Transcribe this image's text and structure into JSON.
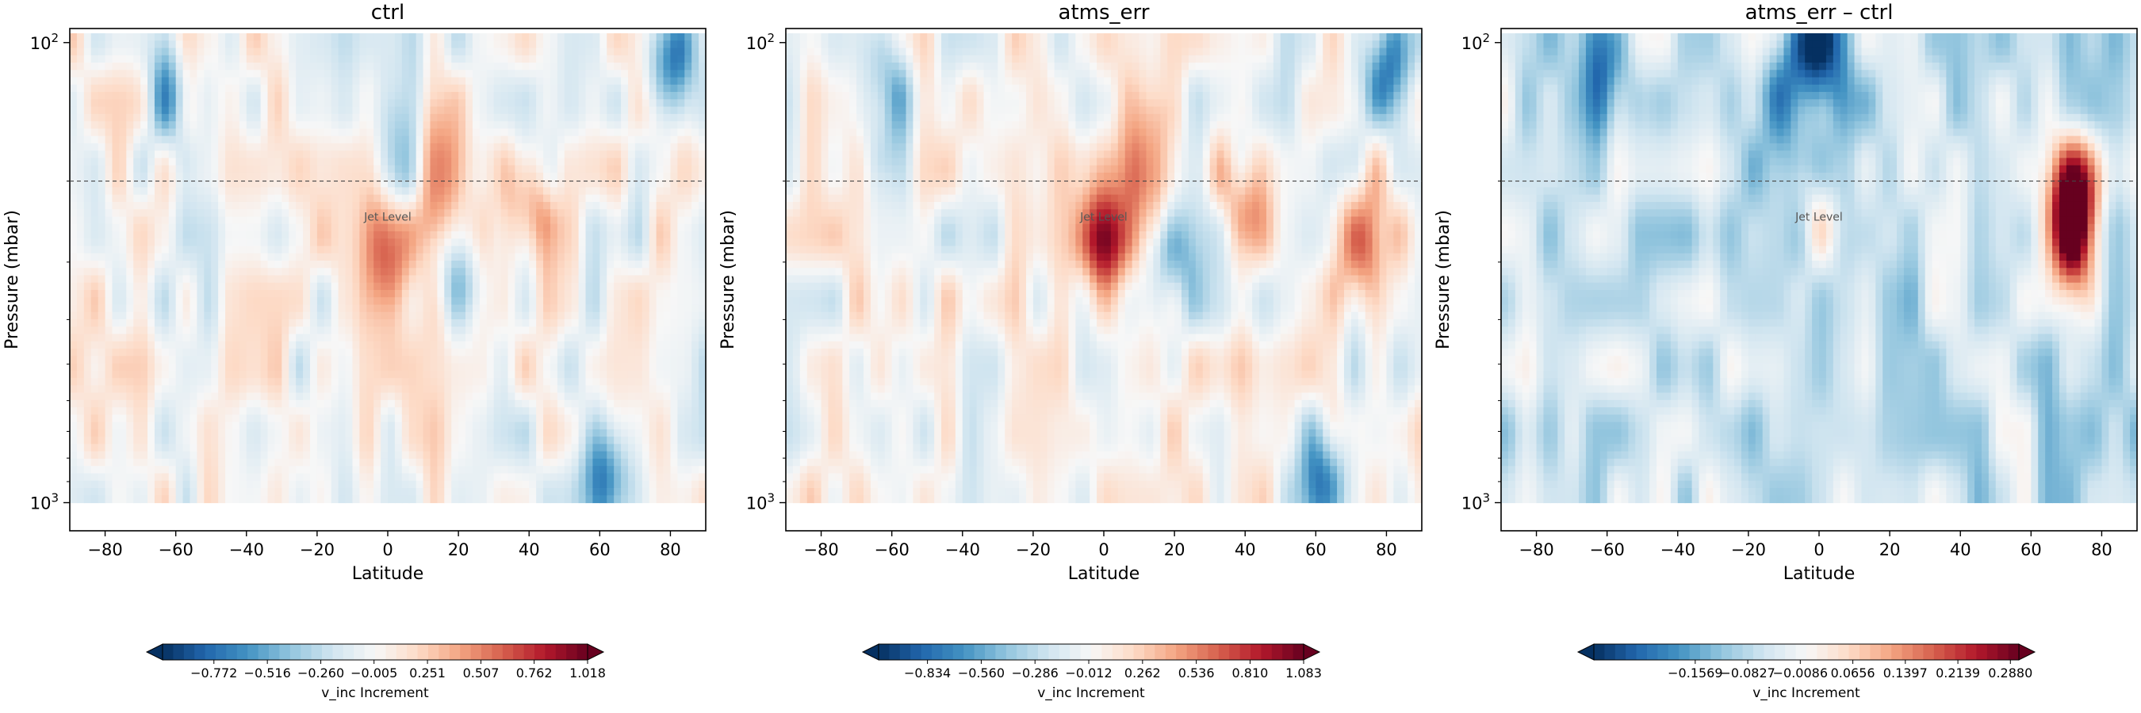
{
  "chart_data": [
    {
      "type": "heatmap",
      "title": "ctrl",
      "xlabel": "Latitude",
      "ylabel": "Pressure (mbar)",
      "xlim": [
        -90,
        90
      ],
      "ylim": [
        1000,
        100
      ],
      "y_scale": "log",
      "x_ticks": [
        "−80",
        "−60",
        "−40",
        "−20",
        "0",
        "20",
        "40",
        "60",
        "80"
      ],
      "y_ticks": [
        {
          "base": "10",
          "exp": "2"
        },
        {
          "base": "10",
          "exp": "3"
        }
      ],
      "reference_line": {
        "pressure": 200,
        "style": "dashed",
        "label": "Jet Level"
      },
      "colormap": "RdBu_r",
      "colorbar": {
        "label": "v_inc Increment",
        "min": -1.018,
        "max": 1.018,
        "ticks": [
          "−0.772",
          "−0.516",
          "−0.260",
          "−0.005",
          "0.251",
          "0.507",
          "0.762",
          "1.018"
        ]
      },
      "features": [
        {
          "lat": 62,
          "pressure": 900,
          "value": -0.7
        },
        {
          "lat": 80,
          "pressure": 110,
          "value": -0.7
        },
        {
          "lat": -62,
          "pressure": 130,
          "value": -0.5
        },
        {
          "lat": 13,
          "pressure": 190,
          "value": 0.6
        },
        {
          "lat": 0,
          "pressure": 270,
          "value": 0.6
        },
        {
          "lat": 40,
          "pressure": 220,
          "value": 0.45
        },
        {
          "lat": 4,
          "pressure": 190,
          "value": -0.4
        },
        {
          "lat": 20,
          "pressure": 310,
          "value": -0.4
        }
      ]
    },
    {
      "type": "heatmap",
      "title": "atms_err",
      "xlabel": "Latitude",
      "ylabel": "Pressure (mbar)",
      "xlim": [
        -90,
        90
      ],
      "ylim": [
        1000,
        100
      ],
      "y_scale": "log",
      "x_ticks": [
        "−80",
        "−60",
        "−40",
        "−20",
        "0",
        "20",
        "40",
        "60",
        "80"
      ],
      "y_ticks": [
        {
          "base": "10",
          "exp": "2"
        },
        {
          "base": "10",
          "exp": "3"
        }
      ],
      "reference_line": {
        "pressure": 200,
        "style": "dashed",
        "label": "Jet Level"
      },
      "colormap": "RdBu_r",
      "colorbar": {
        "label": "v_inc Increment",
        "min": -1.083,
        "max": 1.083,
        "ticks": [
          "−0.834",
          "−0.560",
          "−0.286",
          "−0.012",
          "0.262",
          "0.536",
          "0.810",
          "1.083"
        ]
      },
      "features": [
        {
          "lat": 62,
          "pressure": 900,
          "value": -0.7
        },
        {
          "lat": 80,
          "pressure": 110,
          "value": -0.7
        },
        {
          "lat": -62,
          "pressure": 130,
          "value": -0.5
        },
        {
          "lat": 13,
          "pressure": 190,
          "value": 0.6
        },
        {
          "lat": 0,
          "pressure": 270,
          "value": 0.75
        },
        {
          "lat": 72,
          "pressure": 270,
          "value": 0.75
        },
        {
          "lat": 40,
          "pressure": 220,
          "value": 0.5
        },
        {
          "lat": 20,
          "pressure": 320,
          "value": -0.4
        }
      ]
    },
    {
      "type": "heatmap",
      "title": "atms_err – ctrl",
      "xlabel": "Latitude",
      "ylabel": "Pressure (mbar)",
      "xlim": [
        -90,
        90
      ],
      "ylim": [
        1000,
        100
      ],
      "y_scale": "log",
      "x_ticks": [
        "−80",
        "−60",
        "−40",
        "−20",
        "0",
        "20",
        "40",
        "60",
        "80"
      ],
      "y_ticks": [
        {
          "base": "10",
          "exp": "2"
        },
        {
          "base": "10",
          "exp": "3"
        }
      ],
      "reference_line": {
        "pressure": 200,
        "style": "dashed",
        "label": "Jet Level"
      },
      "colormap": "RdBu_r",
      "colorbar": {
        "label": "v_inc Increment",
        "min": -0.3,
        "max": 0.3,
        "ticks": [
          "−0.1569",
          "−0.0827",
          "−0.0086",
          "0.0656",
          "0.1397",
          "0.2139",
          "0.2880"
        ]
      },
      "features": [
        {
          "lat": 72,
          "pressure": 210,
          "value": 0.3
        },
        {
          "lat": 72,
          "pressure": 270,
          "value": 0.28
        },
        {
          "lat": 0,
          "pressure": 100,
          "value": -0.25
        },
        {
          "lat": -10,
          "pressure": 130,
          "value": -0.15
        },
        {
          "lat": -60,
          "pressure": 120,
          "value": -0.12
        },
        {
          "lat": 0,
          "pressure": 240,
          "value": 0.08
        }
      ]
    }
  ]
}
